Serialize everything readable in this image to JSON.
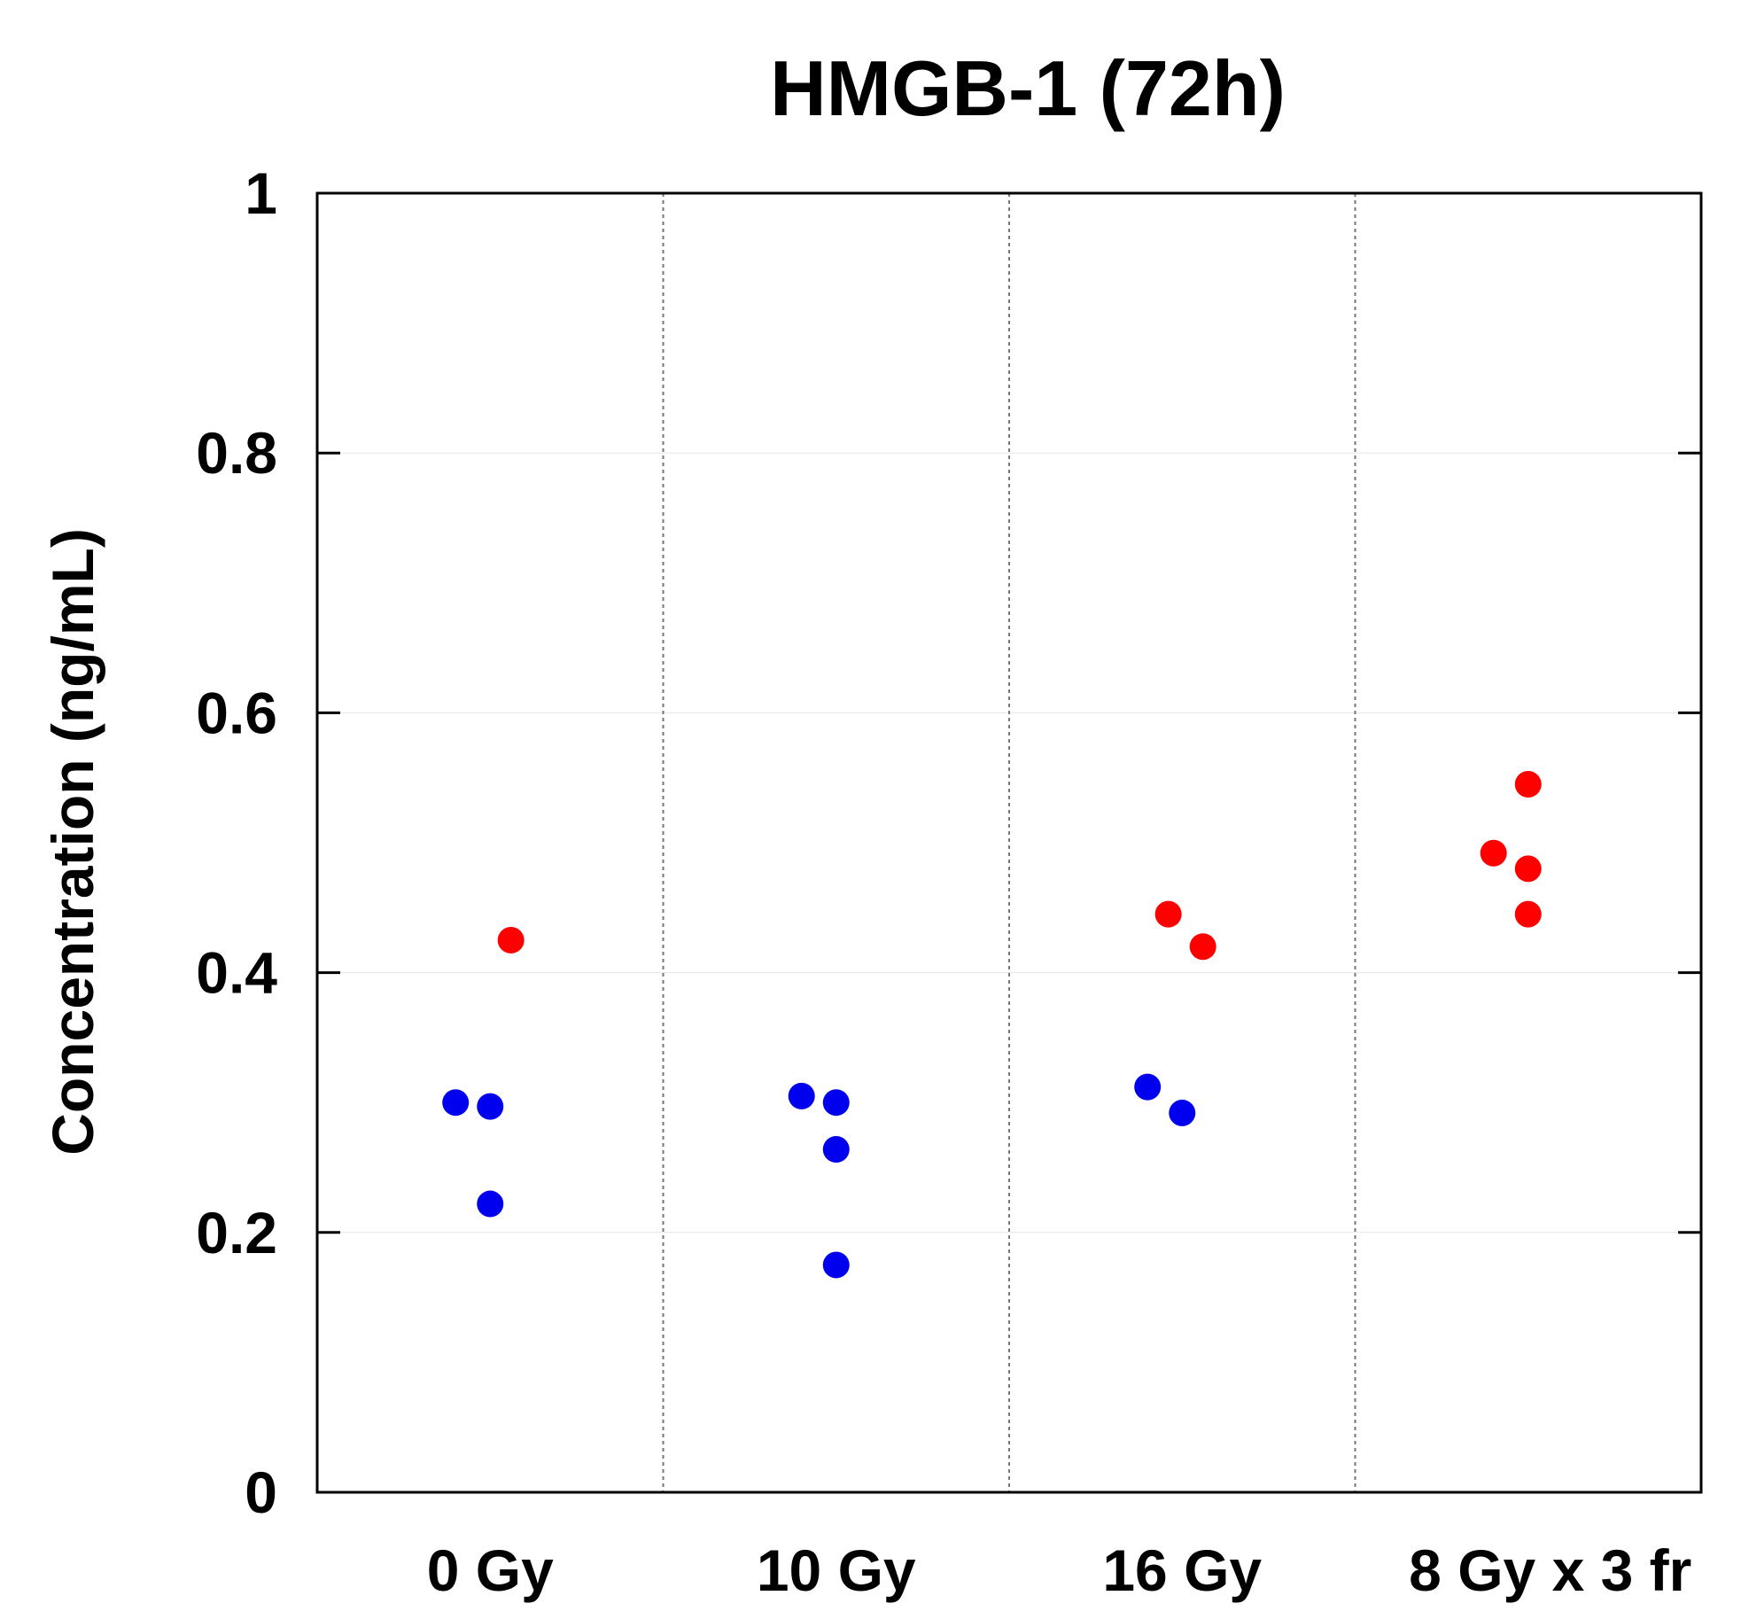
{
  "chart_data": {
    "type": "scatter",
    "title": "HMGB-1  (72h)",
    "xlabel": "",
    "ylabel": "Concentration (ng/mL)",
    "ylim": [
      0,
      1
    ],
    "yticks": [
      "0",
      "0.2",
      "0.4",
      "0.6",
      "0.8",
      "1"
    ],
    "ytick_values": [
      0,
      0.2,
      0.4,
      0.6,
      0.8,
      1
    ],
    "categories": [
      "0 Gy",
      "10 Gy",
      "16 Gy",
      "8 Gy x 3 fr"
    ],
    "colors": {
      "blue": "#0000ee",
      "red": "#ff0000"
    },
    "points": [
      {
        "category": 0,
        "offset": -0.1,
        "value": 0.3,
        "color": "blue"
      },
      {
        "category": 0,
        "offset": 0.0,
        "value": 0.297,
        "color": "blue"
      },
      {
        "category": 0,
        "offset": 0.0,
        "value": 0.222,
        "color": "blue"
      },
      {
        "category": 0,
        "offset": 0.06,
        "value": 0.425,
        "color": "red"
      },
      {
        "category": 1,
        "offset": -0.1,
        "value": 0.305,
        "color": "blue"
      },
      {
        "category": 1,
        "offset": 0.0,
        "value": 0.3,
        "color": "blue"
      },
      {
        "category": 1,
        "offset": 0.0,
        "value": 0.264,
        "color": "blue"
      },
      {
        "category": 1,
        "offset": 0.0,
        "value": 0.175,
        "color": "blue"
      },
      {
        "category": 2,
        "offset": -0.1,
        "value": 0.312,
        "color": "blue"
      },
      {
        "category": 2,
        "offset": 0.0,
        "value": 0.292,
        "color": "blue"
      },
      {
        "category": 2,
        "offset": -0.04,
        "value": 0.445,
        "color": "red"
      },
      {
        "category": 2,
        "offset": 0.06,
        "value": 0.42,
        "color": "red"
      },
      {
        "category": 3,
        "offset": -0.1,
        "value": 0.492,
        "color": "red"
      },
      {
        "category": 3,
        "offset": 0.0,
        "value": 0.545,
        "color": "red"
      },
      {
        "category": 3,
        "offset": 0.0,
        "value": 0.48,
        "color": "red"
      },
      {
        "category": 3,
        "offset": 0.0,
        "value": 0.445,
        "color": "red"
      }
    ]
  }
}
